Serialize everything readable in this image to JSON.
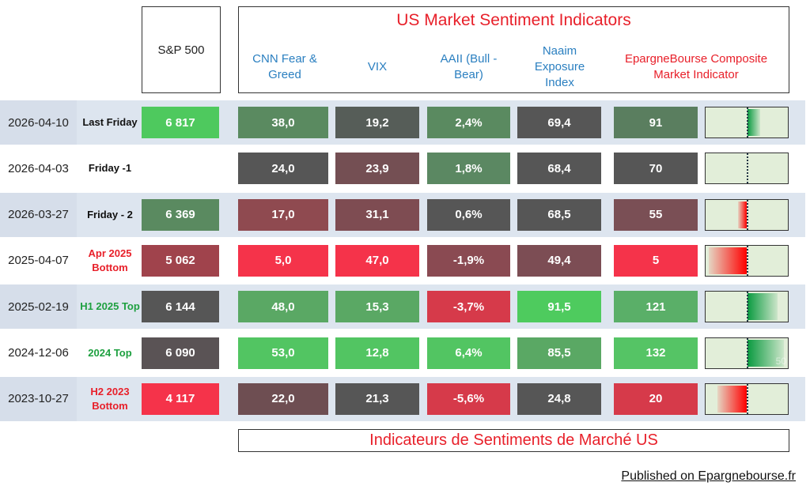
{
  "header": {
    "sp500": "S&P 500",
    "title": "US Market Sentiment Indicators",
    "columns": [
      "CNN Fear & Greed",
      "VIX",
      "AAII (Bull - Bear)",
      "Naaim Exposure Index",
      "EpargneBourse Composite Market Indicator"
    ],
    "title_color": "#e8202a",
    "column_color": "#2a7fc0",
    "composite_color": "#e8202a"
  },
  "rows": [
    {
      "date": "2026-04-10",
      "label": "Last Friday",
      "label_color": "#111",
      "sp": "6 817",
      "sp_c": "#4ec95e",
      "cnn": "38,0",
      "cnn_c": "#5a8a60",
      "vix": "19,2",
      "vix_c": "#565d58",
      "aaii": "2,4%",
      "aaii_c": "#5a8a60",
      "naaim": "69,4",
      "naaim_c": "#565656",
      "comp": "91",
      "comp_c": "#5a7e5f",
      "comp_value": 91
    },
    {
      "date": "2026-04-03",
      "label": "Friday -1",
      "label_color": "#111",
      "sp": "",
      "sp_c": "",
      "cnn": "24,0",
      "cnn_c": "#565656",
      "vix": "23,9",
      "vix_c": "#744f53",
      "aaii": "1,8%",
      "aaii_c": "#5b8862",
      "naaim": "68,4",
      "naaim_c": "#565656",
      "comp": "70",
      "comp_c": "#565656",
      "comp_value": 70
    },
    {
      "date": "2026-03-27",
      "label": "Friday - 2",
      "label_color": "#111",
      "sp": "6 369",
      "sp_c": "#5a8a60",
      "cnn": "17,0",
      "cnn_c": "#8f4a50",
      "vix": "31,1",
      "vix_c": "#7e4c52",
      "aaii": "0,6%",
      "aaii_c": "#565656",
      "naaim": "68,5",
      "naaim_c": "#565656",
      "comp": "55",
      "comp_c": "#7a4f55",
      "comp_value": 55
    },
    {
      "date": "2025-04-07",
      "label": "Apr 2025 Bottom",
      "label_color": "#e8202a",
      "sp": "5 062",
      "sp_c": "#a0434c",
      "cnn": "5,0",
      "cnn_c": "#f5334a",
      "vix": "47,0",
      "vix_c": "#f5334a",
      "aaii": "-1,9%",
      "aaii_c": "#8a4a52",
      "naaim": "49,4",
      "naaim_c": "#7c4d54",
      "comp": "5",
      "comp_c": "#f5334a",
      "comp_value": 5
    },
    {
      "date": "2025-02-19",
      "label": "H1 2025 Top",
      "label_color": "#1ea040",
      "sp": "6 144",
      "sp_c": "#565656",
      "cnn": "48,0",
      "cnn_c": "#5aa864",
      "vix": "15,3",
      "vix_c": "#5aa864",
      "aaii": "-3,7%",
      "aaii_c": "#d63a4a",
      "naaim": "91,5",
      "naaim_c": "#4ecb5e",
      "comp": "121",
      "comp_c": "#5aaf68",
      "comp_value": 121
    },
    {
      "date": "2024-12-06",
      "label": "2024  Top",
      "label_color": "#1ea040",
      "sp": "6 090",
      "sp_c": "#5a5355",
      "cnn": "53,0",
      "cnn_c": "#52c562",
      "vix": "12,8",
      "vix_c": "#52c562",
      "aaii": "6,4%",
      "aaii_c": "#52c562",
      "naaim": "85,5",
      "naaim_c": "#5aa864",
      "comp": "132",
      "comp_c": "#55c465",
      "comp_value": 132
    },
    {
      "date": "2023-10-27",
      "label": "H2 2023 Bottom",
      "label_color": "#e8202a",
      "sp": "4 117",
      "sp_c": "#f5334a",
      "cnn": "22,0",
      "cnn_c": "#6e4e52",
      "vix": "21,3",
      "vix_c": "#565656",
      "aaii": "-5,6%",
      "aaii_c": "#d63a4a",
      "naaim": "24,8",
      "naaim_c": "#565656",
      "comp": "20",
      "comp_c": "#d63a4a",
      "comp_value": 20
    }
  ],
  "footer": {
    "title_fr": "Indicateurs de Sentiments de Marché US",
    "published": "Published on Epargnebourse.fr",
    "bar_label": "50"
  }
}
